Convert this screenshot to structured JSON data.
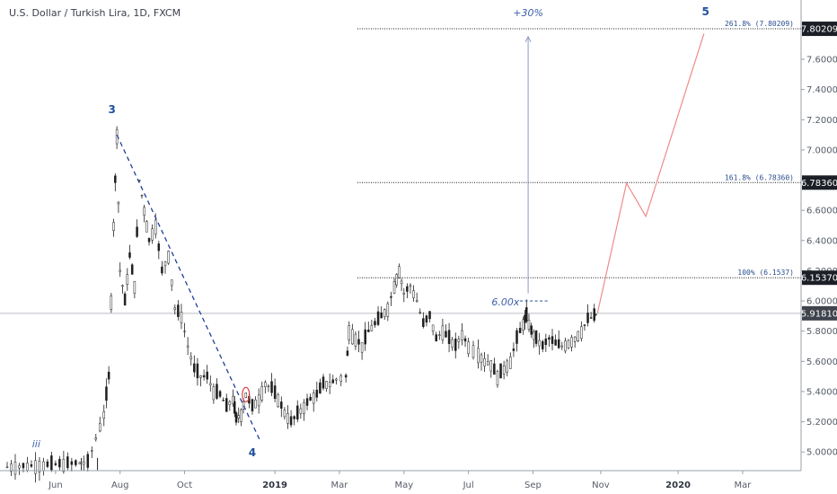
{
  "chart_data": {
    "type": "candlestick",
    "title": "U.S. Dollar / Turkish Lira, 1D, FXCM",
    "ylim": [
      4.9,
      7.85
    ],
    "y_ticks": [
      "5.00000",
      "5.20000",
      "5.40000",
      "5.60000",
      "5.80000",
      "6.00000",
      "6.20000",
      "6.40000",
      "6.60000",
      "6.80000",
      "7.00000",
      "7.20000",
      "7.40000",
      "7.60000"
    ],
    "x_ticks": [
      "Jun",
      "Aug",
      "Oct",
      "2019",
      "Mar",
      "May",
      "Jul",
      "Sep",
      "Nov",
      "2020",
      "Mar"
    ],
    "current_price": {
      "value": 5.9181,
      "label": "5.91810"
    },
    "price_path": [
      [
        0.0,
        4.9
      ],
      [
        2.5,
        4.93
      ],
      [
        3.0,
        5.25
      ],
      [
        3.15,
        5.5
      ],
      [
        3.3,
        6.5
      ],
      [
        3.4,
        7.1
      ],
      [
        3.5,
        6.2
      ],
      [
        3.65,
        6.0
      ],
      [
        3.8,
        6.3
      ],
      [
        3.95,
        6.1
      ],
      [
        4.1,
        6.8
      ],
      [
        4.25,
        6.6
      ],
      [
        4.4,
        6.4
      ],
      [
        4.6,
        6.5
      ],
      [
        4.8,
        6.2
      ],
      [
        5.0,
        6.3
      ],
      [
        5.2,
        5.95
      ],
      [
        5.4,
        5.9
      ],
      [
        5.6,
        5.7
      ],
      [
        5.8,
        5.55
      ],
      [
        6.0,
        5.5
      ],
      [
        6.2,
        5.5
      ],
      [
        6.4,
        5.4
      ],
      [
        6.6,
        5.38
      ],
      [
        6.8,
        5.3
      ],
      [
        7.0,
        5.35
      ],
      [
        7.1,
        5.22
      ],
      [
        7.25,
        5.25
      ],
      [
        7.4,
        5.38
      ],
      [
        7.6,
        5.3
      ],
      [
        7.8,
        5.35
      ],
      [
        8.0,
        5.45
      ],
      [
        8.2,
        5.42
      ],
      [
        8.4,
        5.35
      ],
      [
        8.6,
        5.26
      ],
      [
        8.8,
        5.2
      ],
      [
        9.0,
        5.25
      ],
      [
        9.2,
        5.3
      ],
      [
        9.4,
        5.35
      ],
      [
        9.6,
        5.38
      ],
      [
        9.8,
        5.45
      ],
      [
        10.0,
        5.45
      ],
      [
        10.2,
        5.48
      ],
      [
        10.5,
        5.5
      ],
      [
        10.6,
        5.8
      ],
      [
        10.8,
        5.75
      ],
      [
        11.0,
        5.7
      ],
      [
        11.2,
        5.8
      ],
      [
        11.4,
        5.85
      ],
      [
        11.6,
        5.9
      ],
      [
        11.8,
        5.95
      ],
      [
        12.0,
        6.1
      ],
      [
        12.15,
        6.2
      ],
      [
        12.3,
        6.05
      ],
      [
        12.5,
        6.1
      ],
      [
        12.7,
        6.0
      ],
      [
        12.9,
        5.85
      ],
      [
        13.1,
        5.9
      ],
      [
        13.3,
        5.75
      ],
      [
        13.5,
        5.8
      ],
      [
        13.7,
        5.75
      ],
      [
        13.9,
        5.7
      ],
      [
        14.1,
        5.78
      ],
      [
        14.3,
        5.7
      ],
      [
        14.6,
        5.65
      ],
      [
        14.8,
        5.6
      ],
      [
        15.0,
        5.58
      ],
      [
        15.2,
        5.5
      ],
      [
        15.4,
        5.55
      ],
      [
        15.6,
        5.6
      ],
      [
        15.8,
        5.75
      ],
      [
        16.0,
        5.85
      ],
      [
        16.1,
        5.9
      ],
      [
        16.25,
        5.8
      ],
      [
        16.4,
        5.75
      ],
      [
        16.6,
        5.7
      ],
      [
        16.8,
        5.75
      ],
      [
        17.0,
        5.72
      ],
      [
        17.2,
        5.7
      ],
      [
        17.4,
        5.72
      ],
      [
        17.6,
        5.75
      ],
      [
        17.8,
        5.8
      ],
      [
        18.0,
        5.88
      ],
      [
        18.2,
        5.9
      ],
      [
        18.3,
        5.92
      ]
    ],
    "hline_price": 5.9181,
    "fib_levels": [
      {
        "price": 6.1537,
        "label": "100% (6.1537)",
        "price_label": "6.15370"
      },
      {
        "price": 6.7836,
        "label": "161.8% (6.78360)",
        "price_label": "6.78360"
      },
      {
        "price": 7.80209,
        "label": "261.8% (7.80209)",
        "price_label": "7.80209"
      }
    ],
    "projection": [
      [
        18.3,
        5.92
      ],
      [
        19.2,
        6.78
      ],
      [
        19.8,
        6.56
      ],
      [
        21.6,
        7.77
      ]
    ],
    "trendline": [
      [
        3.4,
        7.1
      ],
      [
        7.85,
        5.07
      ]
    ],
    "arrow": {
      "x": 16.15,
      "from": 6.05,
      "to": 7.75
    },
    "volume_marker": {
      "x_from": 15.9,
      "x_to": 16.8,
      "price": 6.0
    },
    "highlight_circle": {
      "x": 7.4,
      "price": 5.38
    },
    "small_marks": [
      2.3,
      2.8
    ],
    "annotations": {
      "wave_3": "3",
      "wave_4": "4",
      "wave_5": "5",
      "wave_iii": "iii",
      "percent": "+30%",
      "multiplier": "6.00x"
    }
  }
}
